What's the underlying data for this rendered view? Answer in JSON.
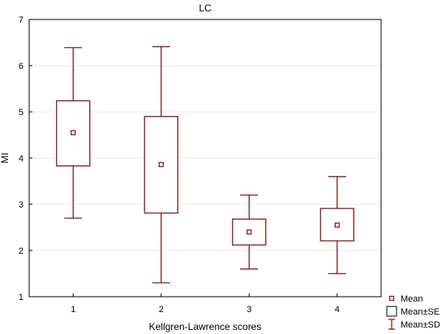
{
  "chart_data": {
    "type": "box",
    "title": "LC",
    "xlabel": "Kellgren-Lawrence scores",
    "ylabel": "MI",
    "categories": [
      "1",
      "2",
      "3",
      "4"
    ],
    "ylim": [
      1,
      7
    ],
    "yticks": [
      "1",
      "2",
      "3",
      "4",
      "5",
      "6",
      "7"
    ],
    "grid": true,
    "legend_position": "bottom-right",
    "boxes": [
      {
        "category": "1",
        "mean": 4.55,
        "se_low": 3.83,
        "se_high": 5.24,
        "sd_low": 2.7,
        "sd_high": 6.39
      },
      {
        "category": "2",
        "mean": 3.86,
        "se_low": 2.81,
        "se_high": 4.9,
        "sd_low": 1.3,
        "sd_high": 6.41
      },
      {
        "category": "3",
        "mean": 2.4,
        "se_low": 2.12,
        "se_high": 2.68,
        "sd_low": 1.6,
        "sd_high": 3.2
      },
      {
        "category": "4",
        "mean": 2.55,
        "se_low": 2.21,
        "se_high": 2.91,
        "sd_low": 1.5,
        "sd_high": 3.6
      }
    ],
    "legend": [
      {
        "key": "mean",
        "label": "Mean"
      },
      {
        "key": "se",
        "label": "Mean±SE"
      },
      {
        "key": "sd",
        "label": "Mean±SD"
      }
    ],
    "colors": {
      "series": "#8b1a1a",
      "axis": "#000000",
      "grid": "#e8e8e8"
    }
  }
}
